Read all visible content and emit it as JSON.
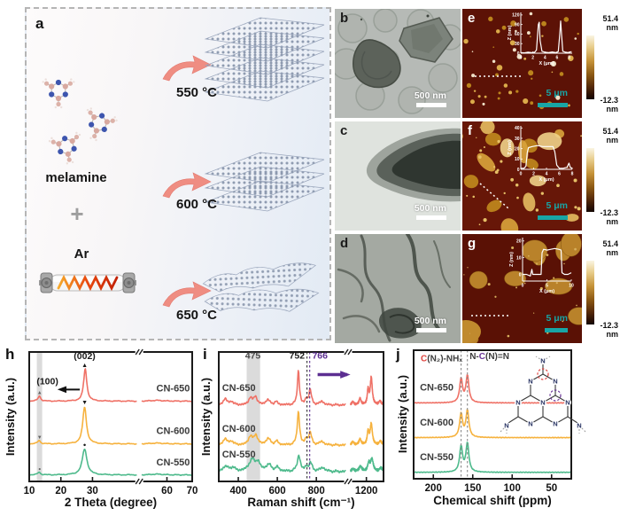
{
  "panel_a": {
    "letter": "a",
    "molecule_label": "melamine",
    "plus_sign": "+",
    "gas_label": "Ar",
    "steps": [
      {
        "temperature": "550 °C"
      },
      {
        "temperature": "600 °C"
      },
      {
        "temperature": "650 °C"
      }
    ],
    "colors": {
      "arrow": "#ef8d82",
      "sheet_dots": "#8a97ad"
    }
  },
  "tem_panels": [
    {
      "letter": "b",
      "scale_bar": "500 nm"
    },
    {
      "letter": "c",
      "scale_bar": "500 nm"
    },
    {
      "letter": "d",
      "scale_bar": "500 nm"
    }
  ],
  "afm_panels": [
    {
      "letter": "e",
      "scale_bar": "5 μm",
      "colorbar": {
        "max": "51.4 nm",
        "min": "-12.3 nm"
      },
      "inset": {
        "ylabel": "Z (nm)",
        "xlabel": "X (μm)",
        "ylim": [
          0,
          128
        ],
        "xlim": [
          0,
          8.5
        ],
        "yticks": [
          0,
          30,
          60,
          90,
          120
        ],
        "xticks": [
          0,
          2,
          4,
          6,
          8
        ],
        "points": [
          [
            0,
            2
          ],
          [
            0.6,
            1
          ],
          [
            1.2,
            3
          ],
          [
            1.8,
            2
          ],
          [
            2.3,
            3
          ],
          [
            2.6,
            10
          ],
          [
            2.9,
            90
          ],
          [
            3.05,
            97
          ],
          [
            3.2,
            40
          ],
          [
            3.5,
            6
          ],
          [
            4,
            3
          ],
          [
            4.6,
            2
          ],
          [
            5.2,
            4
          ],
          [
            5.8,
            2
          ],
          [
            6.2,
            5
          ],
          [
            6.45,
            60
          ],
          [
            6.6,
            101
          ],
          [
            6.75,
            55
          ],
          [
            6.95,
            6
          ],
          [
            7.4,
            3
          ],
          [
            7.9,
            2
          ],
          [
            8.4,
            5
          ]
        ]
      }
    },
    {
      "letter": "f",
      "scale_bar": "5 μm",
      "colorbar": {
        "max": "51.4 nm",
        "min": "-12.3 nm"
      },
      "inset": {
        "ylabel": "Z (nm)",
        "xlabel": "X (μm)",
        "ylim": [
          0,
          42
        ],
        "xlim": [
          0,
          8
        ],
        "yticks": [
          0,
          10,
          20,
          30,
          40
        ],
        "xticks": [
          0,
          2,
          4,
          6,
          8
        ],
        "points": [
          [
            0,
            1
          ],
          [
            0.5,
            1
          ],
          [
            0.8,
            3
          ],
          [
            1.0,
            16
          ],
          [
            1.2,
            21
          ],
          [
            1.8,
            22
          ],
          [
            2.6,
            23
          ],
          [
            3.4,
            22
          ],
          [
            4.2,
            22
          ],
          [
            5.0,
            22
          ],
          [
            5.3,
            17
          ],
          [
            5.6,
            4
          ],
          [
            6.0,
            1
          ],
          [
            6.6,
            1
          ],
          [
            7.2,
            2
          ],
          [
            7.5,
            6
          ],
          [
            7.7,
            2
          ],
          [
            8,
            1
          ]
        ]
      }
    },
    {
      "letter": "g",
      "scale_bar": "5 μm",
      "colorbar": {
        "max": "51.4 nm",
        "min": "-12.3 nm"
      },
      "inset": {
        "ylabel": "Z (nm)",
        "xlabel": "X (μm)",
        "ylim": [
          -4,
          22
        ],
        "xlim": [
          0,
          10
        ],
        "yticks": [
          0,
          10,
          20
        ],
        "xticks": [
          0,
          5,
          10
        ],
        "points": [
          [
            0,
            0
          ],
          [
            0.8,
            0
          ],
          [
            1.6,
            -1
          ],
          [
            1.9,
            3
          ],
          [
            2.1,
            0
          ],
          [
            3,
            0
          ],
          [
            3.8,
            0
          ],
          [
            4.0,
            13
          ],
          [
            4.3,
            15
          ],
          [
            5,
            14.5
          ],
          [
            5.8,
            15
          ],
          [
            6.6,
            15.5
          ],
          [
            7.4,
            15
          ],
          [
            7.9,
            14.5
          ],
          [
            8.1,
            1
          ],
          [
            8.6,
            0
          ],
          [
            9.3,
            0
          ],
          [
            10,
            1
          ]
        ]
      }
    }
  ],
  "structure_inset": {
    "atom_n": "N"
  },
  "chart_data": [
    {
      "id": "xrd",
      "letter": "h",
      "type": "line",
      "xlabel": "2 Theta (degree)",
      "ylabel": "Intensity (a.u.)",
      "x_segments": [
        {
          "x0": 10,
          "x1": 44,
          "f0": 0,
          "f1": 0.66
        },
        {
          "x0": 50,
          "x1": 70,
          "f0": 0.69,
          "f1": 1
        }
      ],
      "xticks": [
        10,
        20,
        30,
        60,
        70
      ],
      "axis_break_f": 0.675,
      "noise": 0.004,
      "bands": [
        {
          "x0": 12.4,
          "x1": 14.1,
          "color": "#bdbdbd",
          "opacity": 0.55
        }
      ],
      "vlines": [],
      "series": [
        {
          "name": "CN-550",
          "color": "#4eba8c",
          "offset": 0.05,
          "peaks": [
            [
              13.1,
              0.022,
              0.5
            ],
            [
              27.5,
              0.2,
              0.9
            ],
            [
              56,
              0.006,
              3
            ]
          ]
        },
        {
          "name": "CN-600",
          "color": "#f6b23e",
          "offset": 0.29,
          "peaks": [
            [
              13.1,
              0.027,
              0.5
            ],
            [
              27.5,
              0.285,
              0.7
            ],
            [
              56,
              0.006,
              3
            ]
          ]
        },
        {
          "name": "CN-650",
          "color": "#ef7166",
          "offset": 0.62,
          "peaks": [
            [
              13.2,
              0.04,
              0.5
            ],
            [
              27.7,
              0.25,
              0.6
            ],
            [
              56,
              0.006,
              3
            ]
          ]
        }
      ],
      "labels": [
        {
          "text": "CN-650",
          "fx": 0.78,
          "fy": 0.305,
          "color": "#3c3c3c",
          "size": 11
        },
        {
          "text": "CN-600",
          "fx": 0.78,
          "fy": 0.635,
          "color": "#3c3c3c",
          "size": 11
        },
        {
          "text": "CN-550",
          "fx": 0.78,
          "fy": 0.875,
          "color": "#3c3c3c",
          "size": 11
        },
        {
          "text": "(002)",
          "fx": 0.34,
          "fy": 0.055,
          "color": "#1a1a1a",
          "size": 10.5,
          "anchor": "middle"
        },
        {
          "text": "▲",
          "fx": 0.34,
          "fy": 0.115,
          "color": "#1a1a1a",
          "size": 7,
          "anchor": "middle"
        },
        {
          "text": "▼",
          "fx": 0.34,
          "fy": 0.405,
          "color": "#1a1a1a",
          "size": 7,
          "anchor": "middle"
        },
        {
          "text": "●",
          "fx": 0.34,
          "fy": 0.73,
          "color": "#1a1a1a",
          "size": 6,
          "anchor": "middle"
        },
        {
          "text": "(100)",
          "fx": 0.112,
          "fy": 0.25,
          "color": "#1a1a1a",
          "size": 10.5,
          "anchor": "middle"
        },
        {
          "text": "▲",
          "fx": 0.064,
          "fy": 0.325,
          "color": "#666666",
          "size": 6,
          "anchor": "middle"
        },
        {
          "text": "▼",
          "fx": 0.064,
          "fy": 0.67,
          "color": "#666666",
          "size": 6,
          "anchor": "middle"
        },
        {
          "text": "●",
          "fx": 0.064,
          "fy": 0.915,
          "color": "#666666",
          "size": 5,
          "anchor": "middle"
        }
      ],
      "arrows": [
        {
          "fx0": 0.31,
          "fy0": 0.29,
          "fx1": 0.19,
          "fy1": 0.29,
          "color": "#111111",
          "w": 2,
          "head": 8
        }
      ]
    },
    {
      "id": "raman",
      "letter": "i",
      "type": "line",
      "xlabel": "Raman shift (cm⁻¹)",
      "ylabel": "Intensity (a.u.)",
      "x_segments": [
        {
          "x0": 300,
          "x1": 950,
          "f0": 0,
          "f1": 0.77
        },
        {
          "x0": 1080,
          "x1": 1330,
          "f0": 0.8,
          "f1": 1
        }
      ],
      "xticks": [
        400,
        600,
        800,
        1200
      ],
      "axis_break_f": 0.785,
      "noise": 0.01,
      "bands": [
        {
          "x0": 443,
          "x1": 512,
          "color": "#bdbdbd",
          "opacity": 0.55
        }
      ],
      "vlines": [
        {
          "x": 752,
          "color": "#333333"
        },
        {
          "x": 766,
          "color": "#5c2e91"
        }
      ],
      "series": [
        {
          "name": "CN-550",
          "color": "#4eba8c",
          "offset": 0.075,
          "noise": 0.012,
          "peaks": [
            [
              335,
              0.04,
              16
            ],
            [
              372,
              0.03,
              12
            ],
            [
              470,
              0.085,
              20
            ],
            [
              500,
              0.06,
              14
            ],
            [
              556,
              0.05,
              16
            ],
            [
              600,
              0.028,
              12
            ],
            [
              710,
              0.125,
              9
            ],
            [
              748,
              0.03,
              8
            ],
            [
              770,
              0.065,
              10
            ],
            [
              832,
              0.03,
              15
            ],
            [
              1100,
              0.02,
              12
            ],
            [
              1155,
              0.04,
              12
            ],
            [
              1218,
              0.06,
              10
            ],
            [
              1242,
              0.095,
              12
            ],
            [
              1310,
              0.025,
              14
            ]
          ]
        },
        {
          "name": "CN-600",
          "color": "#f6b23e",
          "offset": 0.28,
          "peaks": [
            [
              333,
              0.05,
              12
            ],
            [
              366,
              0.03,
              10
            ],
            [
              462,
              0.065,
              12
            ],
            [
              490,
              0.075,
              11
            ],
            [
              553,
              0.05,
              13
            ],
            [
              596,
              0.028,
              10
            ],
            [
              708,
              0.26,
              7
            ],
            [
              748,
              0.04,
              7
            ],
            [
              768,
              0.095,
              9
            ],
            [
              828,
              0.028,
              12
            ],
            [
              1098,
              0.025,
              10
            ],
            [
              1152,
              0.045,
              10
            ],
            [
              1213,
              0.1,
              8
            ],
            [
              1237,
              0.16,
              10
            ],
            [
              1306,
              0.028,
              12
            ]
          ]
        },
        {
          "name": "CN-650",
          "color": "#ef7166",
          "offset": 0.59,
          "peaks": [
            [
              333,
              0.05,
              11
            ],
            [
              366,
              0.028,
              9
            ],
            [
              462,
              0.055,
              10
            ],
            [
              488,
              0.065,
              10
            ],
            [
              551,
              0.04,
              12
            ],
            [
              593,
              0.025,
              9
            ],
            [
              708,
              0.27,
              6
            ],
            [
              748,
              0.04,
              6
            ],
            [
              768,
              0.115,
              8
            ],
            [
              828,
              0.028,
              11
            ],
            [
              1098,
              0.025,
              9
            ],
            [
              1152,
              0.05,
              9
            ],
            [
              1213,
              0.115,
              7
            ],
            [
              1237,
              0.21,
              9
            ],
            [
              1303,
              0.028,
              11
            ]
          ]
        }
      ],
      "labels": [
        {
          "text": "CN-650",
          "fx": 0.02,
          "fy": 0.3,
          "color": "#3c3c3c",
          "size": 11
        },
        {
          "text": "CN-600",
          "fx": 0.02,
          "fy": 0.615,
          "color": "#3c3c3c",
          "size": 11
        },
        {
          "text": "CN-550",
          "fx": 0.02,
          "fy": 0.815,
          "color": "#3c3c3c",
          "size": 11
        },
        {
          "text": "475",
          "fx": 0.207,
          "fy": 0.05,
          "color": "#4a4a4a",
          "size": 10.5,
          "anchor": "middle"
        },
        {
          "text": "752",
          "fx": 0.522,
          "fy": 0.05,
          "color": "#1a1a1a",
          "size": 10.5,
          "anchor": "end"
        },
        {
          "text": "766",
          "fx": 0.567,
          "fy": 0.05,
          "color": "#5c2e91",
          "size": 10.5,
          "anchor": "start"
        }
      ],
      "arrows": [
        {
          "fx0": 0.6,
          "fy0": 0.175,
          "fx1": 0.78,
          "fy1": 0.175,
          "color": "#5c2e91",
          "w": 3.5,
          "head": 9
        }
      ]
    },
    {
      "id": "nmr",
      "letter": "j",
      "type": "line",
      "xlabel": "Chemical shift (ppm)",
      "ylabel": "Intensity (a.u.)",
      "x_segments": [
        {
          "x0": 225,
          "x1": 25,
          "f0": 0,
          "f1": 1
        }
      ],
      "xticks": [
        200,
        150,
        100,
        50
      ],
      "noise": 0.003,
      "bands": [],
      "vlines": [
        {
          "x": 164.8,
          "color": "#8a8a8a"
        },
        {
          "x": 156.8,
          "color": "#8a8a8a"
        }
      ],
      "series": [
        {
          "name": "CN-550",
          "color": "#4eba8c",
          "offset": 0.05,
          "peaks": [
            [
              164.8,
              0.2,
              2.2
            ],
            [
              156.8,
              0.225,
              2.2
            ]
          ]
        },
        {
          "name": "CN-600",
          "color": "#f6b23e",
          "offset": 0.32,
          "peaks": [
            [
              164.8,
              0.185,
              2.2
            ],
            [
              156.8,
              0.21,
              2.2
            ]
          ]
        },
        {
          "name": "CN-650",
          "color": "#ef7166",
          "offset": 0.59,
          "peaks": [
            [
              164.8,
              0.185,
              2.2
            ],
            [
              156.8,
              0.21,
              2.2
            ]
          ]
        }
      ],
      "labels": [
        {
          "text": "CN-650",
          "fx": 0.04,
          "fy": 0.315,
          "color": "#3c3c3c",
          "size": 11
        },
        {
          "text": "CN-600",
          "fx": 0.04,
          "fy": 0.585,
          "color": "#3c3c3c",
          "size": 11
        },
        {
          "text": "CN-550",
          "fx": 0.04,
          "fy": 0.855,
          "color": "#3c3c3c",
          "size": 11
        },
        {
          "rich": [
            {
              "t": "C",
              "c": "#e0433e"
            },
            {
              "t": "(N₂)-NHₓ",
              "c": "#3c3c3c"
            }
          ],
          "fx": 0.045,
          "fy": 0.085,
          "size": 10
        },
        {
          "rich": [
            {
              "t": "N-",
              "c": "#3c3c3c"
            },
            {
              "t": "C",
              "c": "#6a3597"
            },
            {
              "t": "(N)=N",
              "c": "#3c3c3c"
            }
          ],
          "fx": 0.355,
          "fy": 0.07,
          "size": 10
        }
      ],
      "arrows": []
    }
  ]
}
